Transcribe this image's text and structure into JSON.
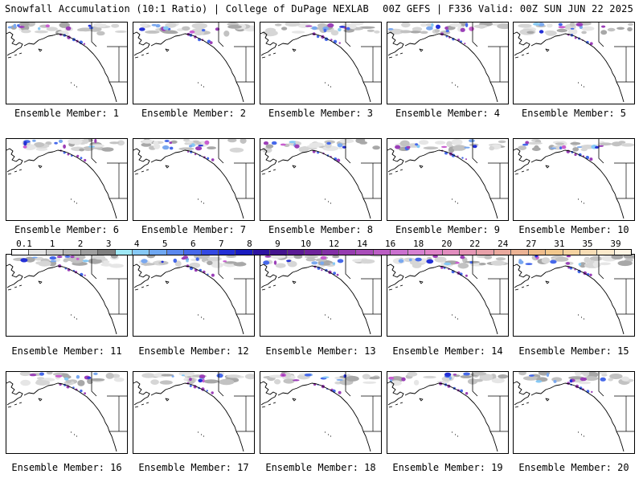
{
  "header": {
    "left": "Snowfall Accumulation (10:1 Ratio) | College of DuPage NEXLAB",
    "right": "00Z GEFS | F336 Valid: 00Z SUN JUN 22 2025"
  },
  "colorbar": {
    "labels": [
      "0.1",
      "1",
      "2",
      "3",
      "4",
      "5",
      "6",
      "7",
      "8",
      "9",
      "10",
      "12",
      "14",
      "16",
      "18",
      "20",
      "22",
      "24",
      "27",
      "31",
      "35",
      "39"
    ],
    "colors": [
      "#ffffff",
      "#e4e4e4",
      "#cfcfcf",
      "#b8b8b8",
      "#9f9f9f",
      "#7f7f7f",
      "#9ee8f5",
      "#86c9f5",
      "#6fa8f2",
      "#5a88ef",
      "#4668ea",
      "#3449e3",
      "#2430d6",
      "#1a1cc0",
      "#2d13a2",
      "#44148f",
      "#5a1a94",
      "#6f239c",
      "#8330a6",
      "#973db0",
      "#a94dba",
      "#bb5ec4",
      "#ca70cf",
      "#d681d2",
      "#df85c8",
      "#e28dbf",
      "#e596b5",
      "#e7a0a9",
      "#eaa99e",
      "#ecb394",
      "#efbd8c",
      "#f2c88d",
      "#f5d3a1",
      "#f8deb6",
      "#fbeacc",
      "#fdf4e3"
    ]
  },
  "panels": [
    {
      "label": "Ensemble Member: 1"
    },
    {
      "label": "Ensemble Member: 2"
    },
    {
      "label": "Ensemble Member: 3"
    },
    {
      "label": "Ensemble Member: 4"
    },
    {
      "label": "Ensemble Member: 5"
    },
    {
      "label": "Ensemble Member: 6"
    },
    {
      "label": "Ensemble Member: 7"
    },
    {
      "label": "Ensemble Member: 8"
    },
    {
      "label": "Ensemble Member: 9"
    },
    {
      "label": "Ensemble Member: 10"
    },
    {
      "label": "Ensemble Member: 11"
    },
    {
      "label": "Ensemble Member: 12"
    },
    {
      "label": "Ensemble Member: 13"
    },
    {
      "label": "Ensemble Member: 14"
    },
    {
      "label": "Ensemble Member: 15"
    },
    {
      "label": "Ensemble Member: 16"
    },
    {
      "label": "Ensemble Member: 17"
    },
    {
      "label": "Ensemble Member: 18"
    },
    {
      "label": "Ensemble Member: 19"
    },
    {
      "label": "Ensemble Member: 20"
    }
  ]
}
